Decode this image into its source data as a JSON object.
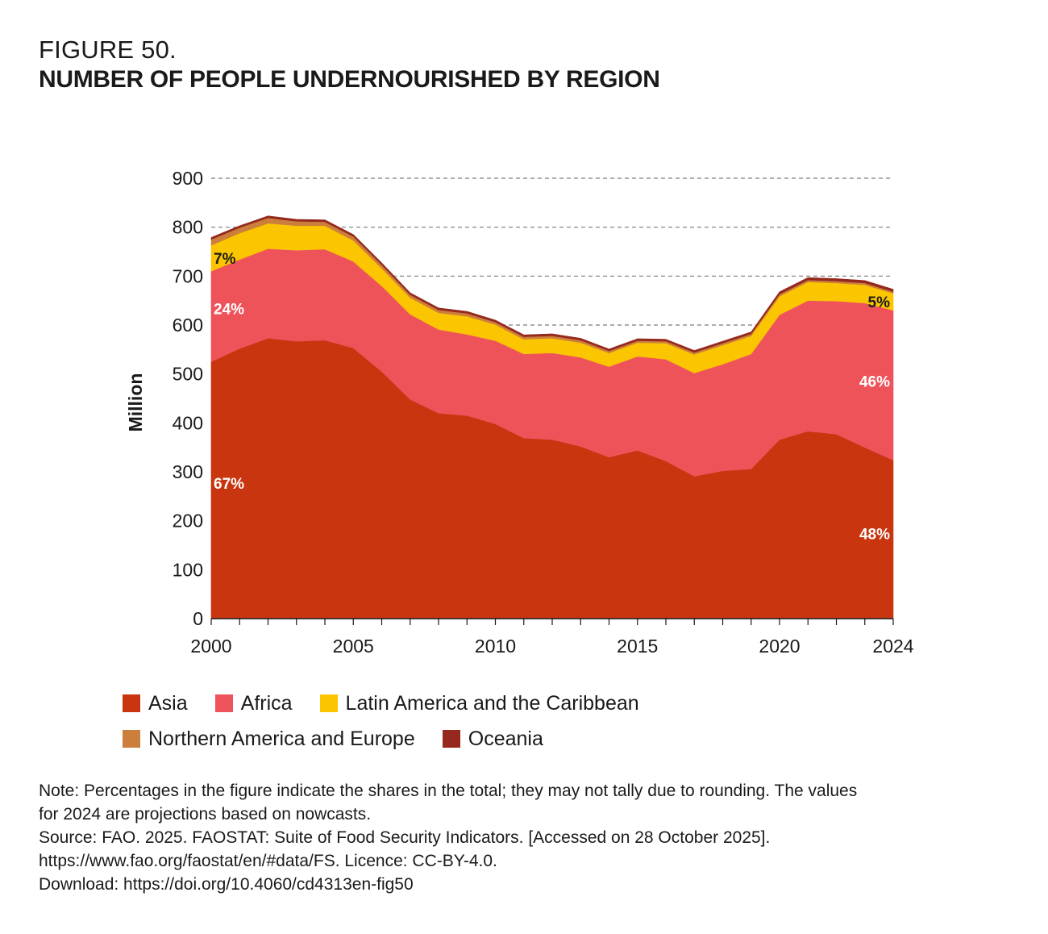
{
  "header": {
    "figure_number": "FIGURE 50.",
    "title": "NUMBER OF PEOPLE UNDERNOURISHED BY REGION"
  },
  "chart_data": {
    "type": "area",
    "stacked": true,
    "title": "NUMBER OF PEOPLE UNDERNOURISHED BY REGION",
    "xlabel": "",
    "ylabel": "Million",
    "xlim": [
      2000,
      2024
    ],
    "ylim": [
      0,
      900
    ],
    "y_ticks": [
      0,
      100,
      200,
      300,
      400,
      500,
      600,
      700,
      800,
      900
    ],
    "x_tick_labels": [
      2000,
      2005,
      2010,
      2015,
      2020,
      2024
    ],
    "grid": "horizontal dashed",
    "legend_position": "bottom",
    "x": [
      2000,
      2001,
      2002,
      2003,
      2004,
      2005,
      2006,
      2007,
      2008,
      2009,
      2010,
      2011,
      2012,
      2013,
      2014,
      2015,
      2016,
      2017,
      2018,
      2019,
      2020,
      2021,
      2022,
      2023,
      2024
    ],
    "series": [
      {
        "name": "Asia",
        "color": "#c9350f",
        "values": [
          525,
          552,
          573,
          567,
          569,
          553,
          505,
          448,
          420,
          415,
          398,
          369,
          366,
          352,
          330,
          344,
          322,
          291,
          302,
          306,
          366,
          383,
          377,
          350,
          324
        ]
      },
      {
        "name": "Africa",
        "color": "#ef535a",
        "values": [
          185,
          182,
          183,
          186,
          186,
          177,
          175,
          174,
          171,
          166,
          170,
          172,
          177,
          182,
          185,
          192,
          208,
          211,
          218,
          235,
          255,
          267,
          272,
          295,
          306
        ]
      },
      {
        "name": "Latin America and the Caribbean",
        "color": "#fbc500",
        "values": [
          53,
          54,
          52,
          50,
          48,
          43,
          36,
          34,
          34,
          37,
          33,
          30,
          30,
          30,
          28,
          28,
          33,
          38,
          39,
          37,
          38,
          38,
          37,
          37,
          35
        ]
      },
      {
        "name": "Northern America and Europe",
        "color": "#cc7f3c",
        "values": [
          12,
          11,
          11,
          9,
          8,
          8,
          7,
          6,
          6,
          6,
          5,
          5,
          5,
          5,
          4,
          4,
          4,
          4,
          4,
          4,
          4,
          4,
          4,
          4,
          3
        ]
      },
      {
        "name": "Oceania",
        "color": "#95291e",
        "values": [
          4,
          4,
          4,
          4,
          4,
          4,
          4,
          4,
          4,
          4,
          4,
          4,
          4,
          4,
          4,
          4,
          4,
          4,
          4,
          4,
          5,
          5,
          5,
          5,
          5
        ]
      }
    ],
    "annotations": [
      {
        "text": "7%",
        "series": "Latin America and the Caribbean",
        "x": 2000,
        "color": "#1a1a1a"
      },
      {
        "text": "24%",
        "series": "Africa",
        "x": 2000,
        "color": "#ffffff"
      },
      {
        "text": "67%",
        "series": "Asia",
        "x": 2000,
        "color": "#ffffff"
      },
      {
        "text": "5%",
        "series": "Latin America and the Caribbean",
        "x": 2024,
        "color": "#1a1a1a"
      },
      {
        "text": "46%",
        "series": "Africa",
        "x": 2024,
        "color": "#ffffff"
      },
      {
        "text": "48%",
        "series": "Asia",
        "x": 2024,
        "color": "#ffffff"
      }
    ]
  },
  "legend": {
    "rows": [
      [
        {
          "label": "Asia",
          "color": "#c9350f"
        },
        {
          "label": "Africa",
          "color": "#ef535a"
        },
        {
          "label": "Latin America and the Caribbean",
          "color": "#fbc500"
        }
      ],
      [
        {
          "label": "Northern America and Europe",
          "color": "#cc7f3c"
        },
        {
          "label": "Oceania",
          "color": "#95291e"
        }
      ]
    ]
  },
  "notes": {
    "line1": "Note: Percentages in the figure indicate the shares in the total; they may not tally due to rounding. The values",
    "line2": "for 2024 are projections based on nowcasts.",
    "line3": "Source: FAO. 2025. FAOSTAT: Suite of Food Security Indicators. [Accessed on 28 October 2025].",
    "line4": "https://www.fao.org/faostat/en/#data/FS. Licence: CC-BY-4.0.",
    "line5": "Download: https://doi.org/10.4060/cd4313en-fig50"
  }
}
